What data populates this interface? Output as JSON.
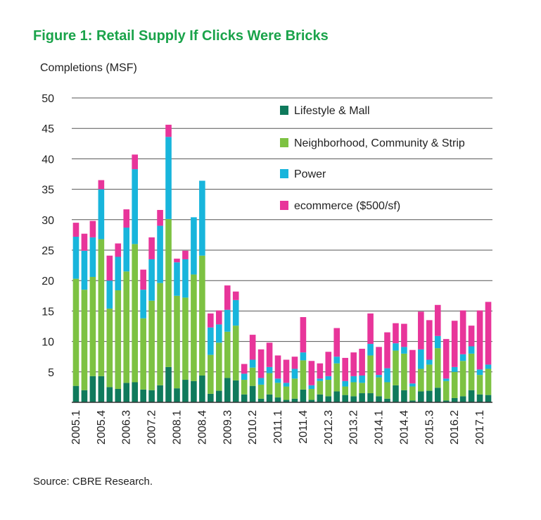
{
  "title": "Figure 1: Retail Supply If Clicks Were Bricks",
  "source": "Source: CBRE Research.",
  "chart_data": {
    "type": "bar",
    "stacked": true,
    "title": "Figure 1: Retail Supply If Clicks Were Bricks",
    "ylabel": "Completions (MSF)",
    "xlabel": "",
    "ylim": [
      0,
      50
    ],
    "yticks": [
      5,
      10,
      15,
      20,
      25,
      30,
      35,
      40,
      45,
      50
    ],
    "xtick_labels": [
      "2005.1",
      "2005.4",
      "2006.3",
      "2007.2",
      "2008.1",
      "2008.4",
      "2009.3",
      "2010.2",
      "2011.1",
      "2011.4",
      "2012.3",
      "2013.2",
      "2014.1",
      "2014.4",
      "2015.3",
      "2016.2",
      "2017.1"
    ],
    "xtick_every": 3,
    "legend_position": "top-right",
    "colors": {
      "lifestyle_mall": "#0f7a5c",
      "neighborhood": "#7dc242",
      "power": "#18b5dc",
      "ecommerce": "#e8359a"
    },
    "categories": [
      "2005.1",
      "2005.2",
      "2005.3",
      "2005.4",
      "2006.1",
      "2006.2",
      "2006.3",
      "2006.4",
      "2007.1",
      "2007.2",
      "2007.3",
      "2007.4",
      "2008.1",
      "2008.2",
      "2008.3",
      "2008.4",
      "2009.1",
      "2009.2",
      "2009.3",
      "2009.4",
      "2010.1",
      "2010.2",
      "2010.3",
      "2010.4",
      "2011.1",
      "2011.2",
      "2011.3",
      "2011.4",
      "2012.1",
      "2012.2",
      "2012.3",
      "2012.4",
      "2013.1",
      "2013.2",
      "2013.3",
      "2013.4",
      "2014.1",
      "2014.2",
      "2014.3",
      "2014.4",
      "2015.1",
      "2015.2",
      "2015.3",
      "2015.4",
      "2016.1",
      "2016.2",
      "2016.3",
      "2016.4",
      "2017.1",
      "2017.2"
    ],
    "series": [
      {
        "name": "Lifestyle & Mall",
        "key": "lifestyle_mall",
        "values": [
          2.7,
          2.0,
          4.3,
          4.3,
          2.5,
          2.2,
          3.2,
          3.3,
          2.1,
          2.0,
          2.8,
          5.8,
          2.3,
          3.7,
          3.5,
          4.4,
          1.4,
          1.9,
          4.0,
          3.6,
          1.3,
          2.7,
          0.6,
          1.3,
          0.8,
          0.4,
          0.6,
          2.1,
          0.4,
          1.3,
          1.0,
          1.8,
          1.2,
          1.0,
          1.5,
          1.5,
          1.0,
          0.6,
          2.8,
          2.0,
          0.3,
          1.8,
          1.9,
          2.4,
          0.3,
          0.7,
          1.0,
          2.0,
          1.3,
          1.2
        ]
      },
      {
        "name": "Neighborhood, Community & Strip",
        "key": "neighborhood",
        "values": [
          17.6,
          16.5,
          16.3,
          22.5,
          12.9,
          16.2,
          18.3,
          22.7,
          11.7,
          14.7,
          16.8,
          24.3,
          15.2,
          13.5,
          17.5,
          19.7,
          6.4,
          7.9,
          7.6,
          9.0,
          2.4,
          3.0,
          2.3,
          3.5,
          2.4,
          2.2,
          3.3,
          4.8,
          1.8,
          2.2,
          2.7,
          4.6,
          1.4,
          2.3,
          1.7,
          6.2,
          3.1,
          2.7,
          5.7,
          6.0,
          2.3,
          3.7,
          4.3,
          6.5,
          3.2,
          4.3,
          5.8,
          6.0,
          3.2,
          4.3
        ]
      },
      {
        "name": "Power",
        "key": "power",
        "values": [
          6.9,
          6.4,
          6.5,
          8.2,
          4.6,
          5.5,
          7.2,
          12.3,
          4.7,
          6.8,
          9.4,
          13.5,
          5.5,
          6.3,
          9.4,
          12.3,
          4.5,
          3.0,
          3.6,
          4.2,
          1.0,
          1.3,
          1.1,
          1.0,
          0.7,
          0.6,
          1.6,
          1.3,
          0.6,
          0.4,
          0.6,
          1.1,
          0.9,
          1.0,
          1.2,
          1.9,
          0.4,
          2.3,
          1.2,
          1.1,
          0.5,
          3.2,
          0.8,
          2.0,
          0.4,
          0.8,
          1.1,
          1.2,
          0.9,
          0.7
        ]
      },
      {
        "name": "ecommerce ($500/sf)",
        "key": "ecommerce",
        "values": [
          2.3,
          2.8,
          2.7,
          1.5,
          4.1,
          2.2,
          3.0,
          2.4,
          3.3,
          3.6,
          2.6,
          2.0,
          0.6,
          1.4,
          0.0,
          0.0,
          2.3,
          2.3,
          4.0,
          1.4,
          1.6,
          4.1,
          4.7,
          4.0,
          3.8,
          3.8,
          2.0,
          5.8,
          4.0,
          2.5,
          4.0,
          4.7,
          3.8,
          3.9,
          4.4,
          5.0,
          4.6,
          5.9,
          3.3,
          3.8,
          5.5,
          6.2,
          6.5,
          5.1,
          6.5,
          7.6,
          7.2,
          3.4,
          9.7,
          10.3
        ]
      }
    ]
  }
}
